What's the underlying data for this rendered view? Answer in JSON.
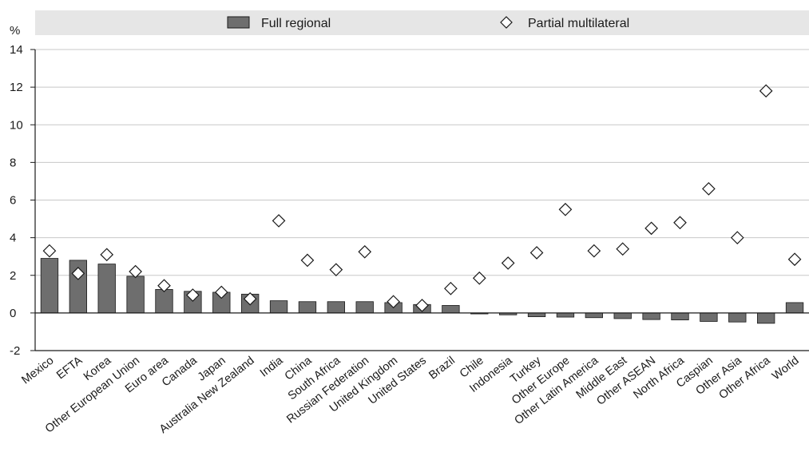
{
  "chart_data": {
    "type": "bar",
    "ylabel": "%",
    "ylim": [
      -2,
      14
    ],
    "yticks": [
      -2,
      0,
      2,
      4,
      6,
      8,
      10,
      12,
      14
    ],
    "grid": "horizontal",
    "legend_position": "top",
    "categories": [
      "Mexico",
      "EFTA",
      "Korea",
      "Other European Union",
      "Euro area",
      "Canada",
      "Japan",
      "Australia New Zealand",
      "India",
      "China",
      "South Africa",
      "Russian Federation",
      "United Kingdom",
      "United States",
      "Brazil",
      "Chile",
      "Indonesia",
      "Turkey",
      "Other Europe",
      "Other Latin America",
      "Middle East",
      "Other ASEAN",
      "North Africa",
      "Caspian",
      "Other Asia",
      "Other Africa",
      "World"
    ],
    "series": [
      {
        "name": "Full regional",
        "mark": "bar",
        "color": "#6e6e6e",
        "values": [
          2.9,
          2.8,
          2.6,
          1.95,
          1.25,
          1.15,
          1.1,
          1.0,
          0.65,
          0.6,
          0.6,
          0.6,
          0.55,
          0.45,
          0.4,
          -0.05,
          -0.1,
          -0.2,
          -0.22,
          -0.25,
          -0.3,
          -0.35,
          -0.37,
          -0.45,
          -0.48,
          -0.55,
          0.55
        ]
      },
      {
        "name": "Partial multilateral",
        "mark": "diamond",
        "color": "#ffffff",
        "values": [
          3.3,
          2.1,
          3.1,
          2.2,
          1.45,
          0.95,
          1.1,
          0.75,
          4.9,
          2.8,
          2.3,
          3.25,
          0.6,
          0.4,
          1.3,
          1.85,
          2.65,
          3.2,
          5.5,
          3.3,
          3.4,
          4.5,
          4.8,
          6.6,
          4.0,
          11.8,
          2.85
        ]
      }
    ]
  }
}
